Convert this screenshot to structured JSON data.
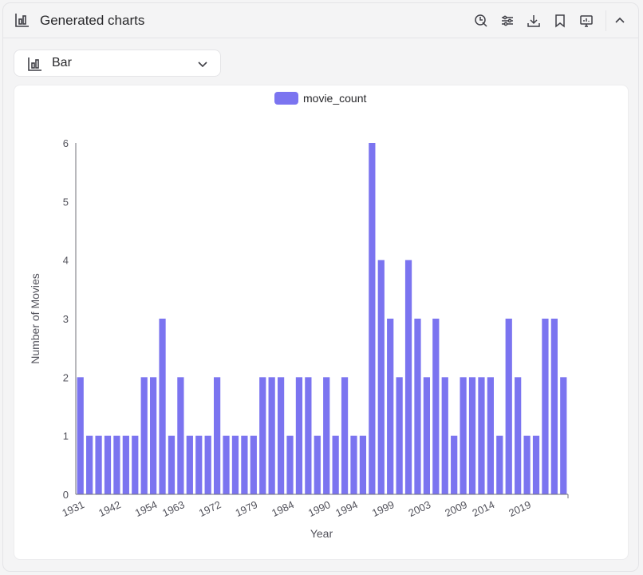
{
  "header": {
    "title": "Generated charts",
    "icon": "bar-chart-icon",
    "tools": [
      {
        "name": "chart-settings-button",
        "icon": "magic-select-icon"
      },
      {
        "name": "adjust-button",
        "icon": "sliders-icon"
      },
      {
        "name": "download-button",
        "icon": "download-icon"
      },
      {
        "name": "bookmark-button",
        "icon": "bookmark-icon"
      },
      {
        "name": "present-button",
        "icon": "monitor-icon"
      },
      {
        "name": "collapse-button",
        "icon": "chevron-up-icon"
      }
    ]
  },
  "chart_selector": {
    "icon": "bar-chart-icon",
    "value": "Bar"
  },
  "colors": {
    "bar": "#7b74f0",
    "axis": "#71717a",
    "text": "#52525b"
  },
  "chart_data": {
    "type": "bar",
    "legend": "movie_count",
    "legend_position": "top-center",
    "xlabel": "Year",
    "ylabel": "Number of Movies",
    "ylim": [
      0,
      6
    ],
    "yticks": [
      0,
      1,
      2,
      3,
      4,
      5,
      6
    ],
    "grid": false,
    "x_tick_labels": [
      "1931",
      "1942",
      "1954",
      "1963",
      "1972",
      "1979",
      "1984",
      "1990",
      "1994",
      "1999",
      "2003",
      "2009",
      "2014",
      "2019"
    ],
    "values": [
      2,
      1,
      1,
      1,
      1,
      1,
      1,
      2,
      2,
      3,
      1,
      2,
      1,
      1,
      1,
      2,
      1,
      1,
      1,
      1,
      2,
      2,
      2,
      1,
      2,
      2,
      1,
      2,
      1,
      2,
      1,
      1,
      6,
      4,
      3,
      2,
      4,
      3,
      2,
      3,
      2,
      1,
      2,
      2,
      2,
      2,
      1,
      3,
      2,
      1,
      1,
      3,
      3,
      2
    ]
  }
}
